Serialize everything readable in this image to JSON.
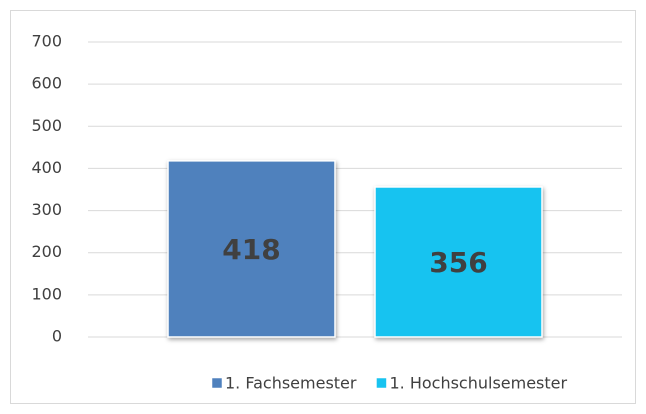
{
  "chart_data": {
    "type": "bar",
    "categories": [
      null
    ],
    "series": [
      {
        "name": "1. Fachsemester",
        "color": "#4f81bd",
        "values": [
          418
        ]
      },
      {
        "name": "1. Hochschulsemester",
        "color": "#17c3f0",
        "values": [
          356
        ]
      }
    ],
    "ylim": [
      0,
      700
    ],
    "yticks": [
      0,
      100,
      200,
      300,
      400,
      500,
      600,
      700
    ],
    "grid": true,
    "legend": "bottom"
  }
}
